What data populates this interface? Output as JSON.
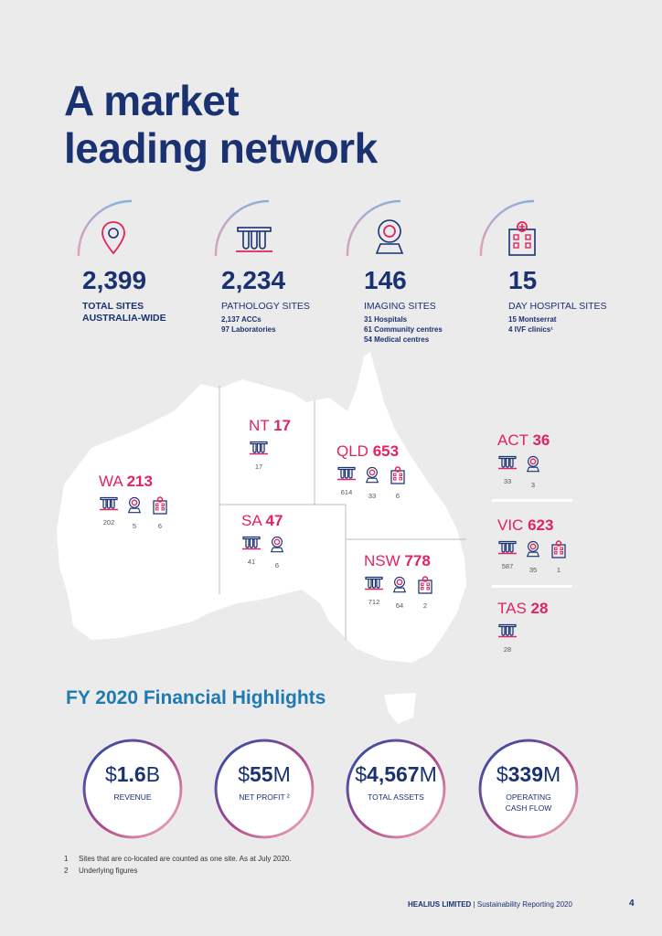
{
  "title_line1": "A market",
  "title_line2": "leading network",
  "stats": [
    {
      "number": "2,399",
      "label": "TOTAL SITES\nAUSTRALIA-WIDE",
      "sub": [],
      "icon": "location-pin-icon"
    },
    {
      "number": "2,234",
      "label": "PATHOLOGY SITES",
      "sub": [
        "2,137 ACCs",
        "97 Laboratories"
      ],
      "icon": "test-tubes-icon"
    },
    {
      "number": "146",
      "label": "IMAGING SITES",
      "sub": [
        "31 Hospitals",
        "61 Community centres",
        "54 Medical centres"
      ],
      "icon": "imaging-scanner-icon"
    },
    {
      "number": "15",
      "label": "DAY HOSPITAL SITES",
      "sub": [
        "15 Montserrat",
        "4 IVF clinics¹"
      ],
      "icon": "hospital-building-icon"
    }
  ],
  "states": {
    "nt": {
      "name": "NT",
      "total": "17",
      "counts": [
        "17"
      ]
    },
    "qld": {
      "name": "QLD",
      "total": "653",
      "counts": [
        "614",
        "33",
        "6"
      ]
    },
    "wa": {
      "name": "WA",
      "total": "213",
      "counts": [
        "202",
        "5",
        "6"
      ]
    },
    "sa": {
      "name": "SA",
      "total": "47",
      "counts": [
        "41",
        "6"
      ]
    },
    "nsw": {
      "name": "NSW",
      "total": "778",
      "counts": [
        "712",
        "64",
        "2"
      ]
    },
    "act": {
      "name": "ACT",
      "total": "36",
      "counts": [
        "33",
        "3"
      ]
    },
    "vic": {
      "name": "VIC",
      "total": "623",
      "counts": [
        "587",
        "35",
        "1"
      ]
    },
    "tas": {
      "name": "TAS",
      "total": "28",
      "counts": [
        "28"
      ]
    }
  },
  "financial_title": "FY 2020 Financial Highlights",
  "financials": [
    {
      "prefix": "$",
      "value": "1.6",
      "suffix": "B",
      "label": "REVENUE"
    },
    {
      "prefix": "$",
      "value": "55",
      "suffix": "M",
      "label": "NET PROFIT ²"
    },
    {
      "prefix": "$",
      "value": "4,567",
      "suffix": "M",
      "label": "TOTAL ASSETS"
    },
    {
      "prefix": "$",
      "value": "339",
      "suffix": "M",
      "label": "OPERATING\nCASH FLOW"
    }
  ],
  "footnotes": [
    {
      "n": "1",
      "text": "Sites that are co-located are counted as one site. As at July 2020."
    },
    {
      "n": "2",
      "text": "Underlying figures"
    }
  ],
  "footer": {
    "company": "HEALIUS LIMITED",
    "sep": "|",
    "report": "Sustainability Reporting 2020",
    "page": "4"
  },
  "colors": {
    "navy": "#1a3272",
    "pink": "#e0245e",
    "blue": "#1f7ab3"
  }
}
